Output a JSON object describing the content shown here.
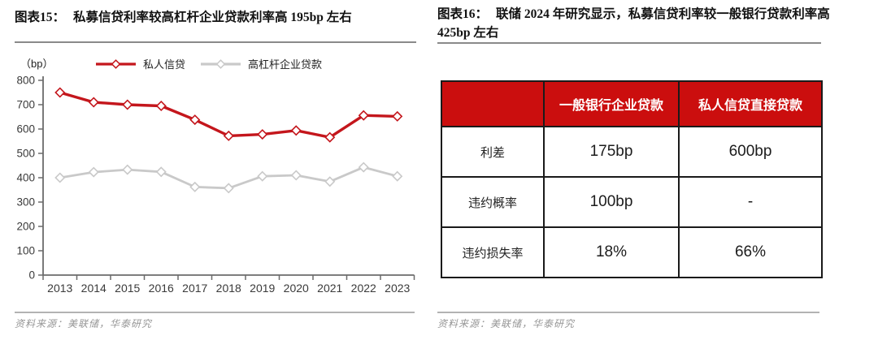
{
  "figure15": {
    "fig_label": "图表15：",
    "title": "私募信贷利率较高杠杆企业贷款利率高 195bp 左右",
    "source": "资料来源：美联储，华泰研究"
  },
  "figure16": {
    "fig_label": "图表16：",
    "title_line1": "联储 2024 年研究显示，私募信贷利率较一般银行贷款利率高",
    "title_line2": "425bp 左右",
    "source": "资料来源：美联储，华泰研究"
  },
  "chart_data": {
    "type": "line",
    "unit_label": "（bp）",
    "categories": [
      "2013",
      "2014",
      "2015",
      "2016",
      "2017",
      "2018",
      "2019",
      "2020",
      "2021",
      "2022",
      "2023"
    ],
    "series": [
      {
        "name": "私人信贷",
        "color": "#C4161C",
        "marker": "diamond",
        "values": [
          750,
          710,
          700,
          695,
          638,
          572,
          578,
          594,
          566,
          656,
          652
        ]
      },
      {
        "name": "高杠杆企业贷款",
        "color": "#C9C9C9",
        "marker": "diamond",
        "values": [
          400,
          423,
          433,
          424,
          362,
          357,
          406,
          410,
          384,
          443,
          406
        ]
      }
    ],
    "ylim": [
      0,
      800
    ],
    "ytick_step": 100,
    "grid": false,
    "legend_position": "top"
  },
  "table": {
    "header": [
      "",
      "一般银行企业贷款",
      "私人信贷直接贷款"
    ],
    "rows": [
      {
        "label": "利差",
        "values": [
          "175bp",
          "600bp"
        ]
      },
      {
        "label": "违约概率",
        "values": [
          "100bp",
          "-"
        ]
      },
      {
        "label": "违约损失率",
        "values": [
          "18%",
          "66%"
        ]
      }
    ],
    "header_bg": "#CB0E0E"
  },
  "colors": {
    "accent_red": "#C4161C",
    "table_header_red": "#CB0E0E",
    "axis_gray": "#6b6b6b",
    "label_dark": "#3a3a3a"
  }
}
